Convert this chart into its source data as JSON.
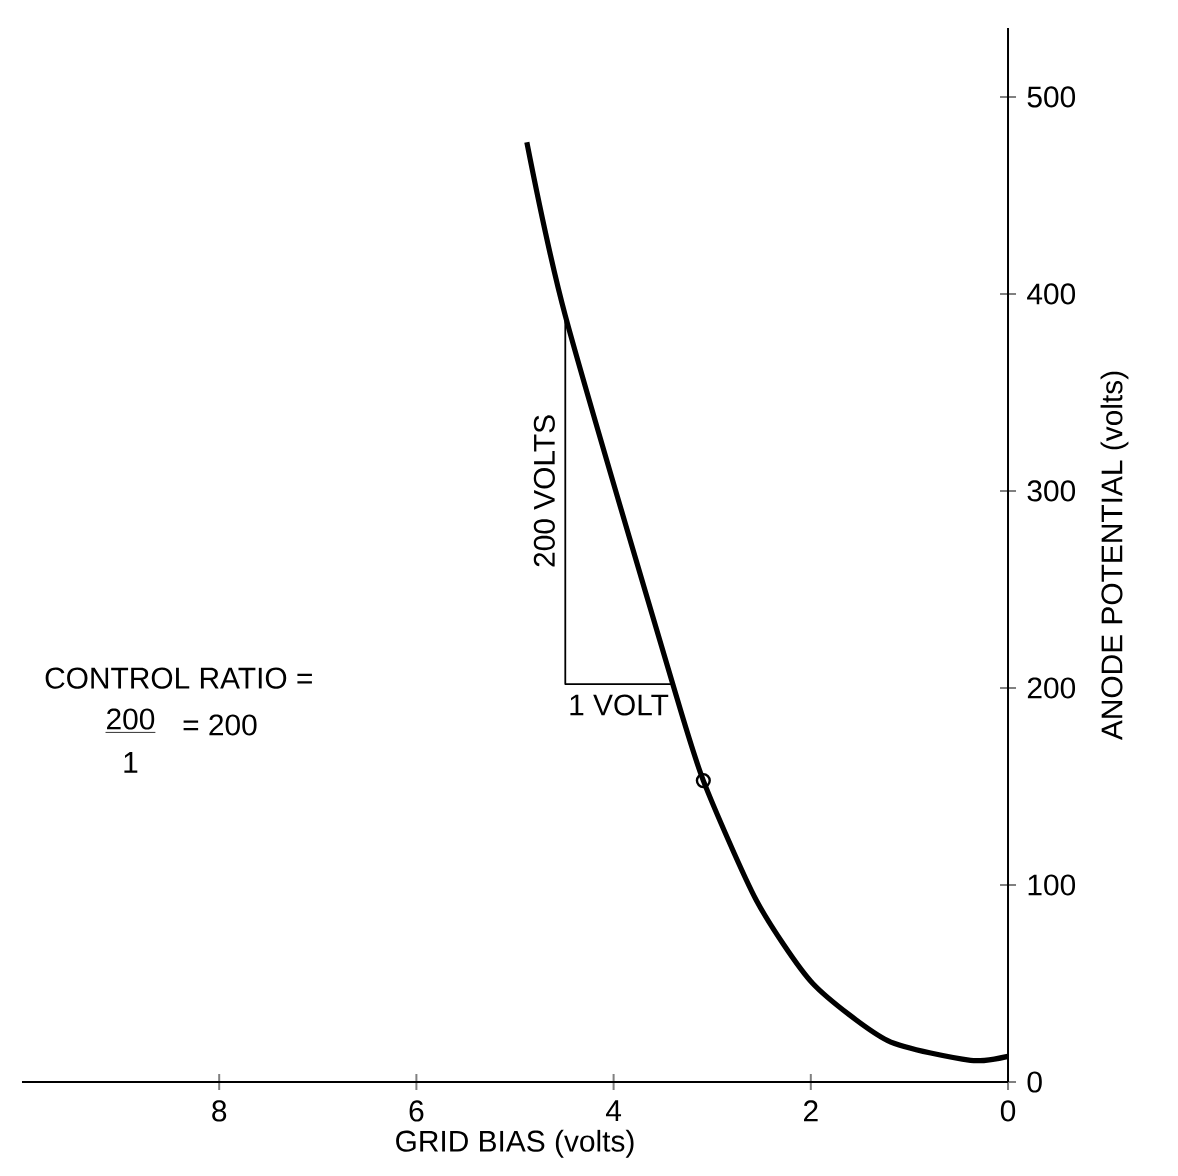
{
  "chart_data": {
    "type": "line",
    "xlabel": "GRID BIAS (volts)",
    "ylabel": "ANODE POTENTIAL (volts)",
    "xlim": [
      10,
      0
    ],
    "xticks": [
      8,
      6,
      4,
      2,
      0
    ],
    "ylim": [
      0,
      535
    ],
    "yticks": [
      0,
      100,
      200,
      300,
      400,
      500
    ],
    "series": [
      {
        "color": "#000000",
        "x": [
          4.88,
          4.49,
          3.4,
          3.09,
          2.55,
          1.98,
          1.22,
          0.38,
          0
        ],
        "values": [
          477,
          389,
          202,
          153,
          92,
          50,
          21,
          11,
          13
        ]
      },
      {
        "color": "#000000",
        "x": [
          4.49,
          4.49,
          3.4
        ],
        "values": [
          389,
          202,
          202
        ]
      },
      {
        "type": "scatter",
        "color": "#000000",
        "marker": "circle",
        "x": [
          3.09
        ],
        "values": [
          153
        ]
      }
    ],
    "annotations": [
      {
        "text": "200 VOLTS",
        "x": 4.49,
        "y": 300
      },
      {
        "text": "1 VOLT",
        "x": 3.95,
        "y": 202
      },
      "CONTROL RATIO =",
      "200",
      "1",
      "= 200"
    ]
  }
}
